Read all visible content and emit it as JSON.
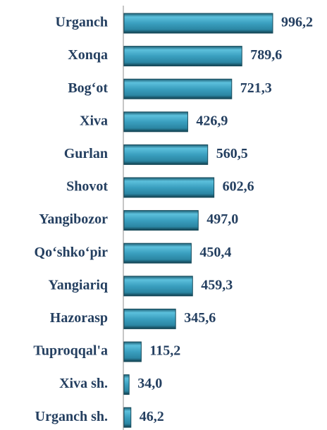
{
  "chart_data": {
    "type": "bar",
    "orientation": "horizontal",
    "categories": [
      "Urganch",
      "Xonqa",
      "Bog‘ot",
      "Xiva",
      "Gurlan",
      "Shovot",
      "Yangibozor",
      "Qo‘shko‘pir",
      "Yangiariq",
      "Hazorasp",
      "Tuproqqal'a",
      "Xiva sh.",
      "Urganch sh."
    ],
    "values": [
      996.2,
      789.6,
      721.3,
      426.9,
      560.5,
      602.6,
      497.0,
      450.4,
      459.3,
      345.6,
      115.2,
      34.0,
      46.2
    ],
    "value_labels": [
      "996,2",
      "789,6",
      "721,3",
      "426,9",
      "560,5",
      "602,6",
      "497,0",
      "450,4",
      "459,3",
      "345,6",
      "115,2",
      "34,0",
      "46,2"
    ],
    "color": "#3a9fbf"
  }
}
